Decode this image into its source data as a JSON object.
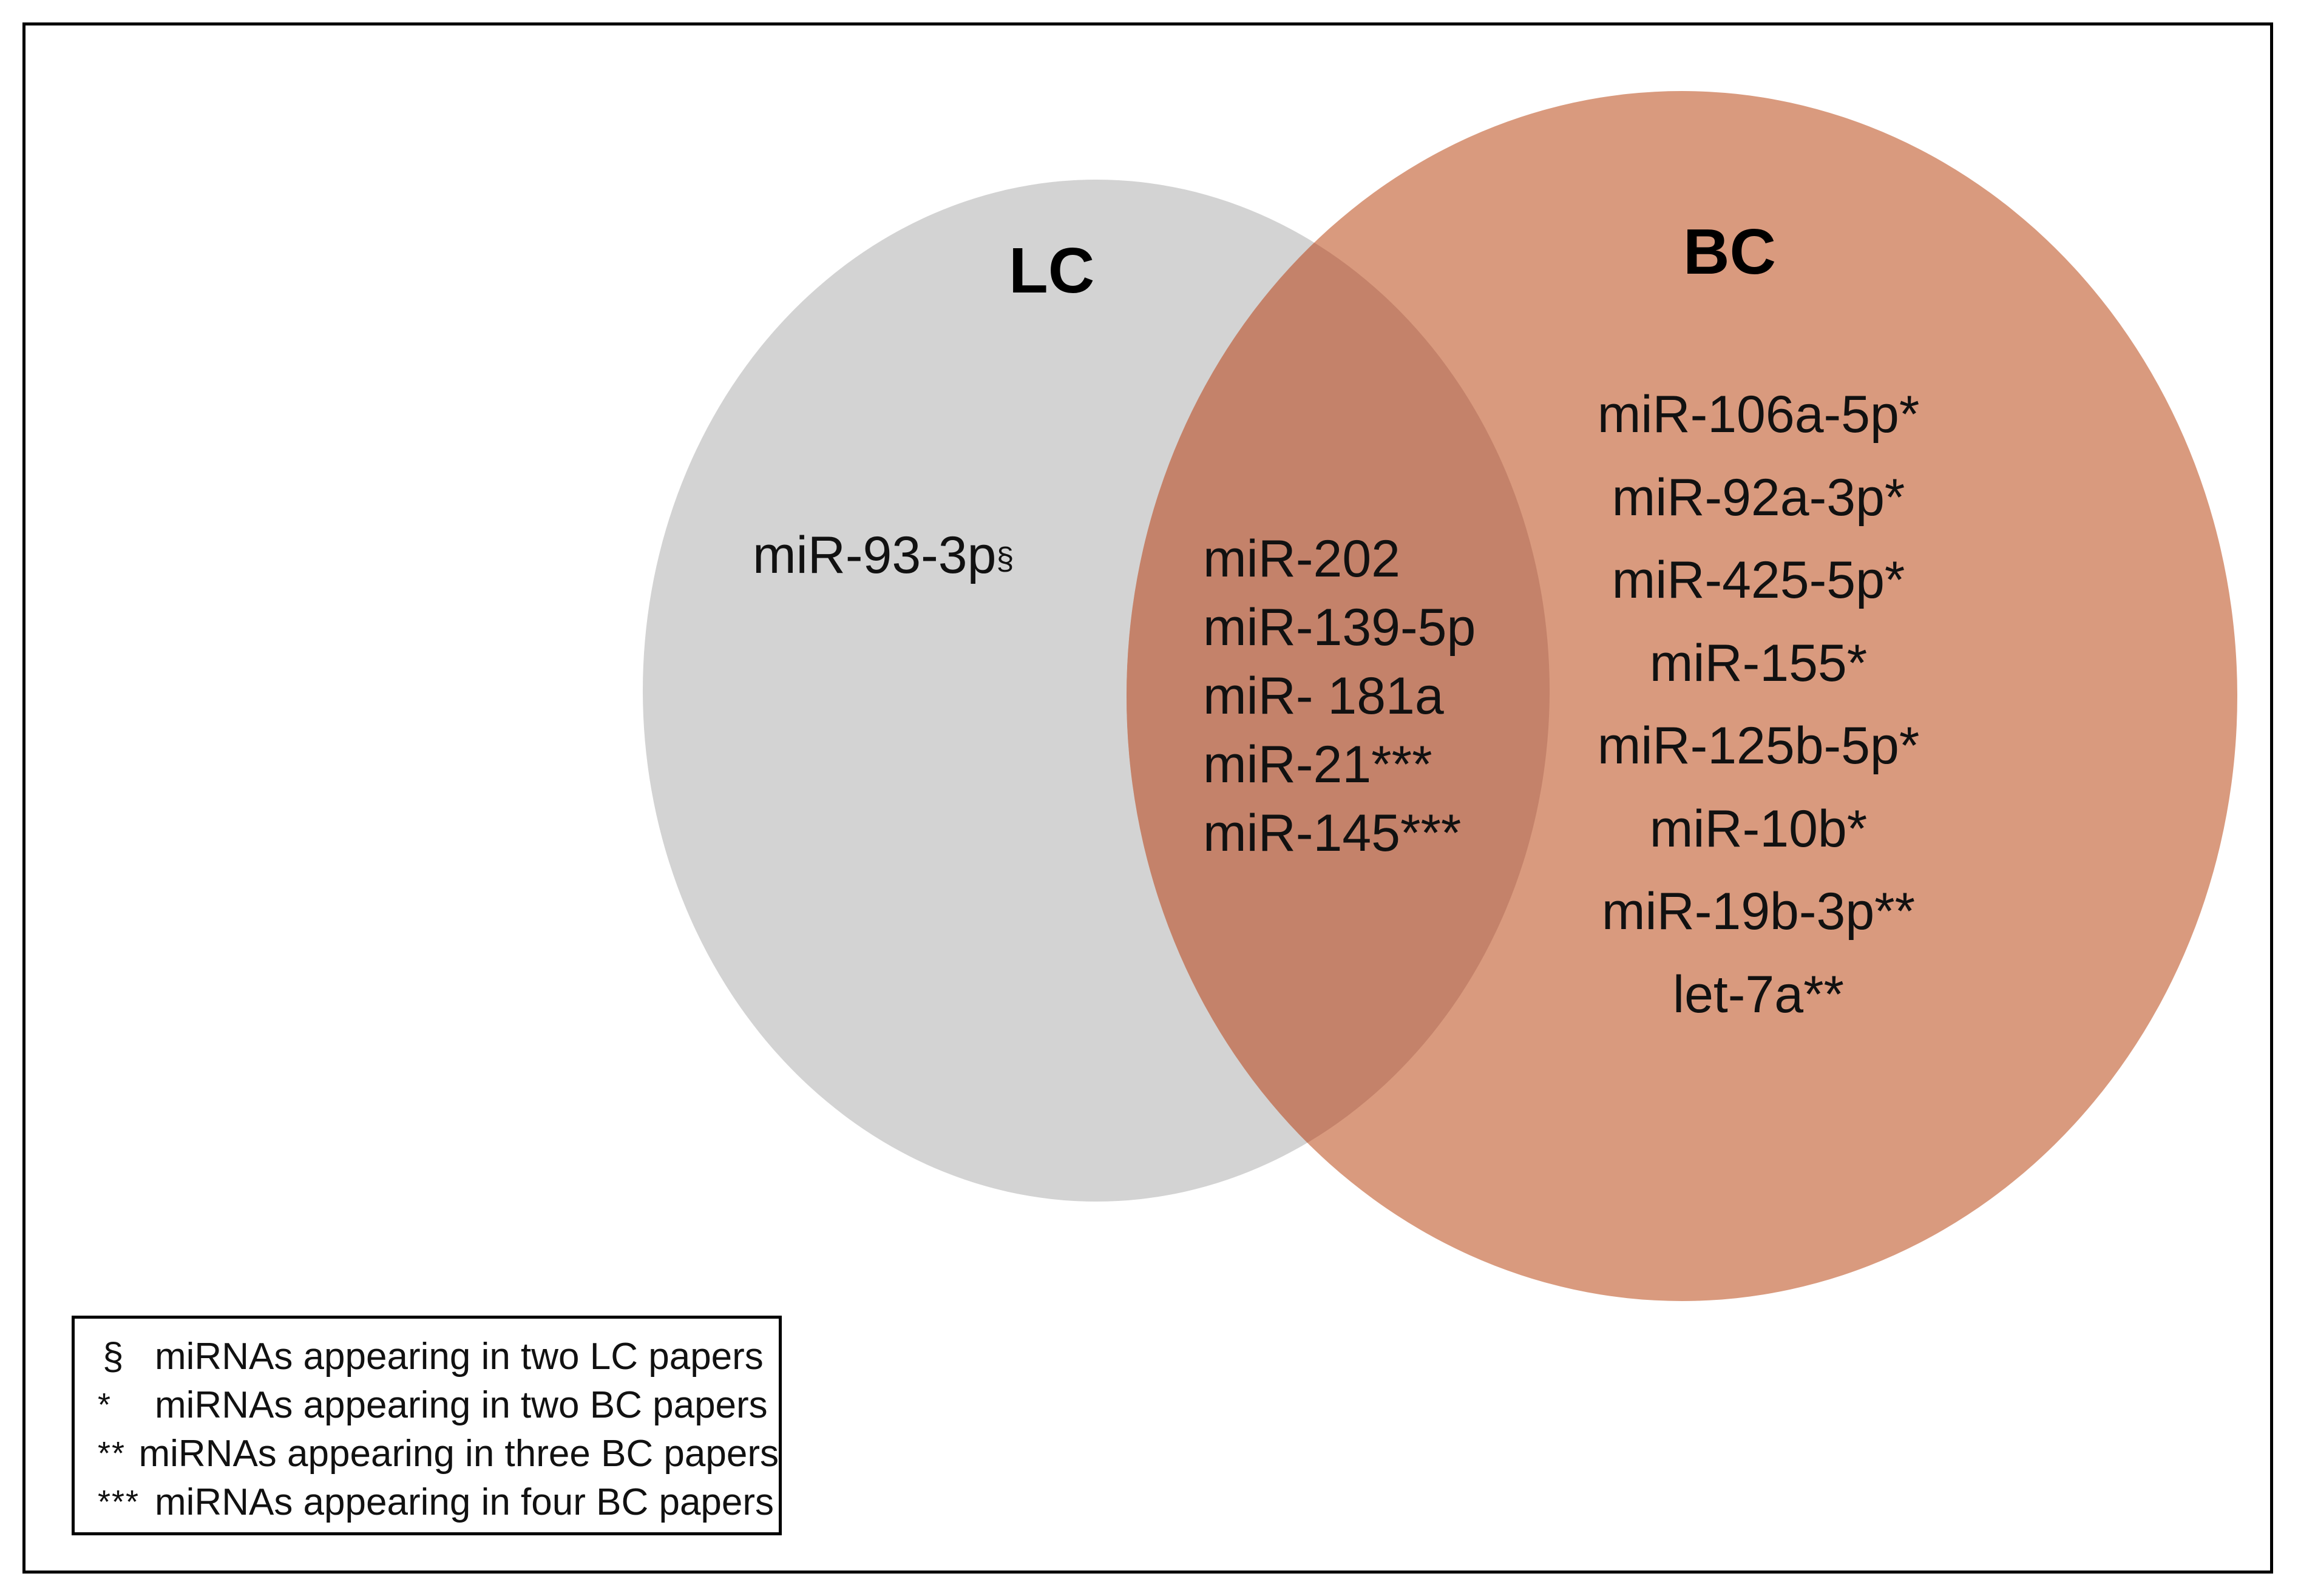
{
  "colors": {
    "lc_circle": "#d3d3d3",
    "bc_circle": "#d99a7e",
    "overlap": "#c4826a",
    "border": "#000000",
    "background": "#ffffff"
  },
  "sets": {
    "lc": {
      "label": "LC",
      "only_items": [
        {
          "name": "miR-93-3p",
          "mark": "§"
        }
      ]
    },
    "bc": {
      "label": "BC",
      "only_items": [
        "miR-106a-5p*",
        "miR-92a-3p*",
        "miR-425-5p*",
        "miR-155*",
        "miR-125b-5p*",
        "miR-10b*",
        "miR-19b-3p**",
        "let-7a**"
      ]
    },
    "intersection": [
      "miR-202",
      "miR-139-5p",
      "miR- 181a",
      "miR-21***",
      "miR-145***"
    ]
  },
  "legend": [
    {
      "symbol": "§",
      "text": "miRNAs appearing in two LC papers"
    },
    {
      "symbol": "*",
      "text": "miRNAs appearing in two BC papers"
    },
    {
      "symbol": "**",
      "text": "miRNAs appearing in three BC papers"
    },
    {
      "symbol": "***",
      "text": "miRNAs appearing in four BC papers"
    }
  ]
}
